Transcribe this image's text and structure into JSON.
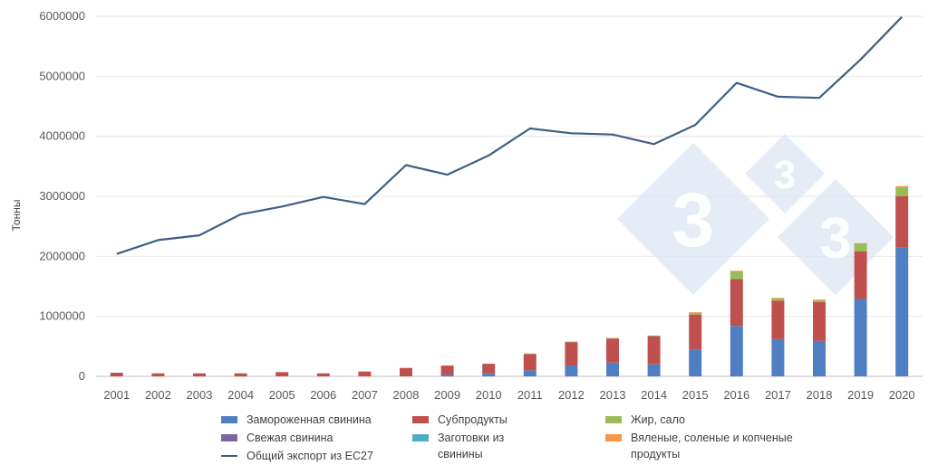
{
  "chart_data": {
    "type": "bar+line",
    "ylabel": "Тонны",
    "ylim": [
      0,
      6000000
    ],
    "yticks": [
      "0",
      "1000000",
      "2000000",
      "3000000",
      "4000000",
      "5000000",
      "6000000"
    ],
    "categories": [
      "2001",
      "2002",
      "2003",
      "2004",
      "2005",
      "2006",
      "2007",
      "2008",
      "2009",
      "2010",
      "2011",
      "2012",
      "2013",
      "2014",
      "2015",
      "2016",
      "2017",
      "2018",
      "2019",
      "2020"
    ],
    "grid": true,
    "legend_position": "bottom",
    "stacked_series": [
      {
        "name": "Замороженная свинина",
        "color": "#4f7ec2",
        "values": [
          0,
          0,
          0,
          0,
          0,
          0,
          0,
          0,
          30000,
          50000,
          100000,
          180000,
          230000,
          200000,
          440000,
          840000,
          620000,
          590000,
          1290000,
          2150000
        ]
      },
      {
        "name": "Свежая свинина",
        "color": "#8064a2",
        "values": [
          0,
          0,
          0,
          0,
          0,
          0,
          0,
          0,
          0,
          0,
          0,
          0,
          0,
          0,
          0,
          0,
          0,
          0,
          0,
          0
        ]
      },
      {
        "name": "Заготовки из свинины",
        "color": "#4bacc6",
        "values": [
          0,
          0,
          0,
          0,
          0,
          0,
          0,
          0,
          0,
          0,
          0,
          0,
          0,
          0,
          0,
          0,
          0,
          0,
          0,
          0
        ]
      },
      {
        "name": "Субпродукты",
        "color": "#c0504d",
        "values": [
          60000,
          50000,
          50000,
          50000,
          70000,
          50000,
          80000,
          140000,
          150000,
          160000,
          270000,
          390000,
          400000,
          470000,
          590000,
          780000,
          640000,
          650000,
          790000,
          850000
        ]
      },
      {
        "name": "Жир, сало",
        "color": "#9bbb59",
        "values": [
          0,
          0,
          0,
          0,
          0,
          0,
          0,
          0,
          0,
          0,
          10000,
          10000,
          10000,
          10000,
          30000,
          130000,
          40000,
          30000,
          130000,
          150000
        ]
      },
      {
        "name": "Вяленые, соленые и копченые продукты",
        "color": "#f79646",
        "values": [
          0,
          0,
          0,
          0,
          0,
          0,
          0,
          0,
          0,
          0,
          0,
          0,
          0,
          0,
          10000,
          10000,
          10000,
          10000,
          10000,
          20000
        ]
      }
    ],
    "line_series": {
      "name": "Общий экспорт из ЕС27",
      "color": "#3f5f86",
      "values": [
        2040000,
        2270000,
        2350000,
        2700000,
        2830000,
        2990000,
        2870000,
        3520000,
        3360000,
        3680000,
        4130000,
        4050000,
        4030000,
        3870000,
        4190000,
        4890000,
        4660000,
        4640000,
        5280000,
        5990000
      ]
    }
  },
  "legend": {
    "frozen": "Замороженная свинина",
    "offal": "Субпродукты",
    "fat": "Жир, сало",
    "fresh": "Свежая свинина",
    "prep_line1": "Заготовки из",
    "prep_line2": "свинины",
    "cured_line1": "Вяленые, соленые и копченые",
    "cured_line2": "продукты",
    "total": "Общий экспорт из ЕС27"
  },
  "colors": {
    "frozen": "#4f7ec2",
    "offal": "#c0504d",
    "fat": "#9bbb59",
    "fresh": "#8064a2",
    "prep": "#4bacc6",
    "cured": "#f79646",
    "total": "#3f5f86",
    "watermark": "#dde6f1"
  },
  "watermark": "3"
}
